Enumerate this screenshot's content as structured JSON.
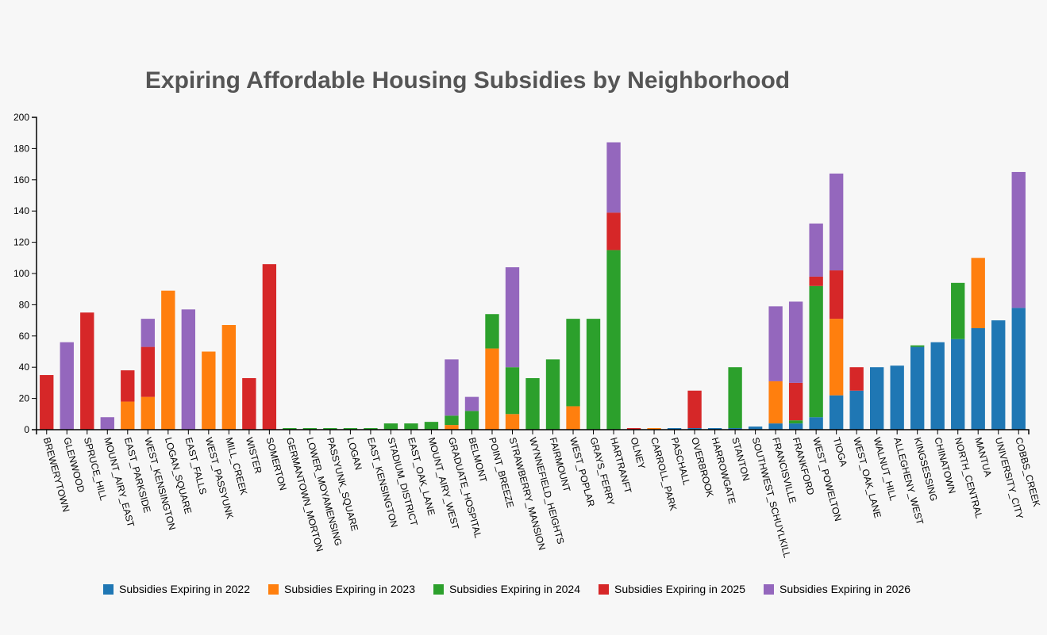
{
  "chart_data": {
    "type": "bar",
    "stacked": true,
    "title": "Expiring Affordable Housing Subsidies by Neighborhood",
    "xlabel": "",
    "ylabel": "",
    "ylim": [
      0,
      200
    ],
    "yticks": [
      0,
      20,
      40,
      60,
      80,
      100,
      120,
      140,
      160,
      180,
      200
    ],
    "grid": false,
    "legend_position": "bottom",
    "categories": [
      "BREWERYTOWN",
      "GLENWOOD",
      "SPRUCE_HILL",
      "MOUNT_AIRY_EAST",
      "EAST_PARKSIDE",
      "WEST_KENSINGTON",
      "LOGAN_SQUARE",
      "EAST_FALLS",
      "WEST_PASSYUNK",
      "MILL_CREEK",
      "WISTER",
      "SOMERTON",
      "GERMANTOWN_MORTON",
      "LOWER_MOYAMENSING",
      "PASSYUNK_SQUARE",
      "LOGAN",
      "EAST_KENSINGTON",
      "STADIUM_DISTRICT",
      "EAST_OAK_LANE",
      "MOUNT_AIRY_WEST",
      "GRADUATE_HOSPITAL",
      "BELMONT",
      "POINT_BREEZE",
      "STRAWBERRY_MANSION",
      "WYNNEFIELD_HEIGHTS",
      "FAIRMOUNT",
      "WEST_POPLAR",
      "GRAYS_FERRY",
      "HARTRANFT",
      "OLNEY",
      "CARROLL_PARK",
      "PASCHALL",
      "OVERBROOK",
      "HARROWGATE",
      "STANTON",
      "SOUTHWEST_SCHUYLKILL",
      "FRANCISVILLE",
      "FRANKFORD",
      "WEST_POWELTON",
      "TIOGA",
      "WEST_OAK_LANE",
      "WALNUT_HILL",
      "ALLEGHENY_WEST",
      "KINGSESSING",
      "CHINATOWN",
      "NORTH_CENTRAL",
      "MANTUA",
      "UNIVERSITY_CITY",
      "COBBS_CREEK"
    ],
    "series": [
      {
        "name": "Subsidies Expiring in 2022",
        "color": "#1f77b4",
        "values": [
          0,
          0,
          0,
          0,
          0,
          0,
          0,
          0,
          0,
          0,
          0,
          0,
          0,
          0,
          0,
          0,
          0,
          0,
          0,
          0,
          0,
          0,
          0,
          0,
          0,
          0,
          0,
          0,
          0,
          0,
          0,
          1,
          1,
          1,
          1,
          2,
          4,
          4,
          8,
          22,
          25,
          40,
          41,
          53,
          56,
          58,
          65,
          70,
          78
        ]
      },
      {
        "name": "Subsidies Expiring in 2023",
        "color": "#ff7f0e",
        "values": [
          0,
          0,
          0,
          0,
          18,
          21,
          89,
          0,
          50,
          67,
          0,
          0,
          0,
          0,
          0,
          0,
          0,
          0,
          0,
          0,
          3,
          0,
          52,
          10,
          0,
          0,
          15,
          0,
          0,
          0,
          1,
          0,
          0,
          0,
          0,
          0,
          27,
          0,
          0,
          49,
          0,
          0,
          0,
          0,
          0,
          0,
          45,
          0,
          0
        ]
      },
      {
        "name": "Subsidies Expiring in 2024",
        "color": "#2ca02c",
        "values": [
          0,
          0,
          0,
          0,
          0,
          0,
          0,
          0,
          0,
          0,
          0,
          0,
          1,
          1,
          1,
          1,
          1,
          4,
          4,
          5,
          6,
          12,
          22,
          30,
          33,
          45,
          56,
          71,
          115,
          0,
          0,
          0,
          0,
          0,
          39,
          0,
          0,
          2,
          84,
          0,
          0,
          0,
          0,
          1,
          0,
          36,
          0,
          0,
          0
        ]
      },
      {
        "name": "Subsidies Expiring in 2025",
        "color": "#d62728",
        "values": [
          35,
          0,
          75,
          0,
          20,
          32,
          0,
          0,
          0,
          0,
          33,
          106,
          0,
          0,
          0,
          0,
          0,
          0,
          0,
          0,
          0,
          0,
          0,
          0,
          0,
          0,
          0,
          0,
          24,
          1,
          0,
          0,
          24,
          0,
          0,
          0,
          0,
          24,
          6,
          31,
          15,
          0,
          0,
          0,
          0,
          0,
          0,
          0,
          0
        ]
      },
      {
        "name": "Subsidies Expiring in 2026",
        "color": "#9467bd",
        "values": [
          0,
          56,
          0,
          8,
          0,
          18,
          0,
          77,
          0,
          0,
          0,
          0,
          0,
          0,
          0,
          0,
          0,
          0,
          0,
          0,
          36,
          9,
          0,
          64,
          0,
          0,
          0,
          0,
          45,
          0,
          0,
          0,
          0,
          0,
          0,
          0,
          48,
          52,
          34,
          62,
          0,
          0,
          0,
          0,
          0,
          0,
          0,
          0,
          87
        ]
      }
    ]
  }
}
